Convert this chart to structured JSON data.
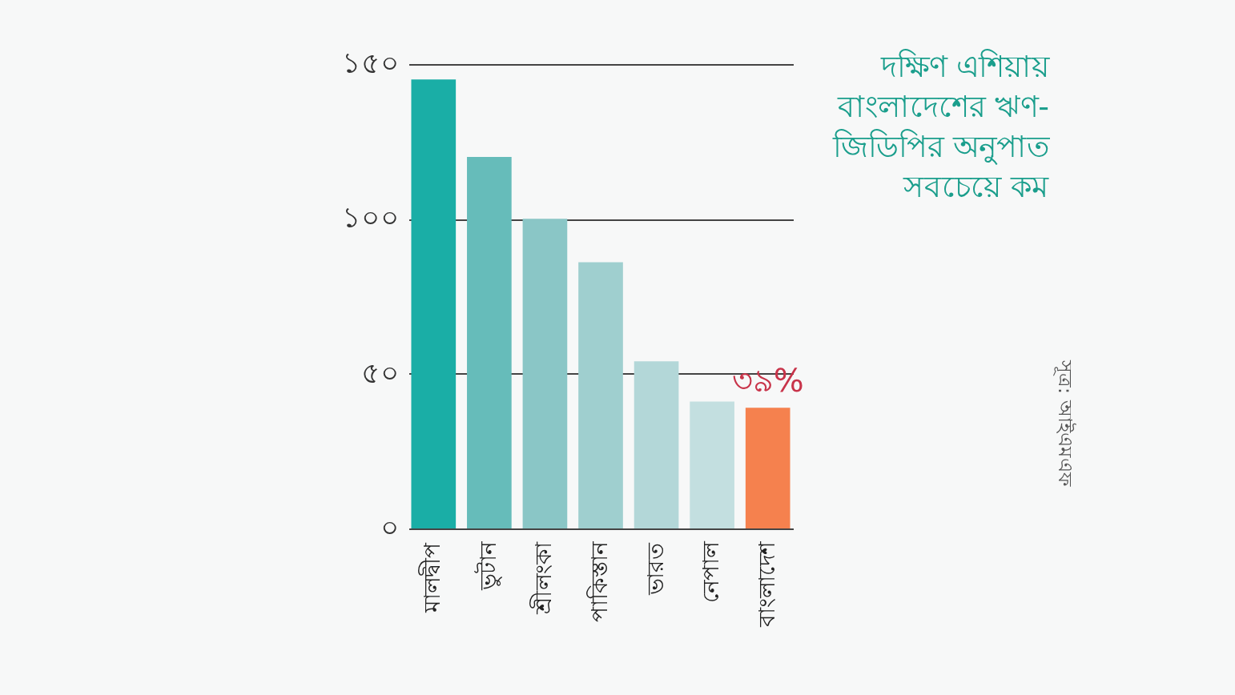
{
  "chart_data": {
    "type": "bar",
    "title": "দক্ষিণ এশিয়ায় বাংলাদেশের ঋণ-জিডিপির অনুপাত সবচেয়ে কম",
    "categories": [
      "মালদ্বীপ",
      "ভুটান",
      "শ্রীলংকা",
      "পাকিস্তান",
      "ভারত",
      "নেপাল",
      "বাংলাদেশ"
    ],
    "values": [
      145,
      120,
      100,
      86,
      54,
      41,
      39
    ],
    "colors": [
      "#1aaea6",
      "#66bcba",
      "#8ac6c6",
      "#9fcfcf",
      "#b3d7d8",
      "#c3dfe0",
      "#f5814e"
    ],
    "value_labels": [
      null,
      null,
      null,
      null,
      null,
      null,
      "৩৯%"
    ],
    "ylim": [
      0,
      150
    ],
    "yticks": [
      {
        "value": 0,
        "label": "০"
      },
      {
        "value": 50,
        "label": "৫০"
      },
      {
        "value": 100,
        "label": "১০০"
      },
      {
        "value": 150,
        "label": "১৫০"
      }
    ],
    "grid": "y",
    "annotations": [
      "সূত্র: আইএমএফ"
    ]
  }
}
